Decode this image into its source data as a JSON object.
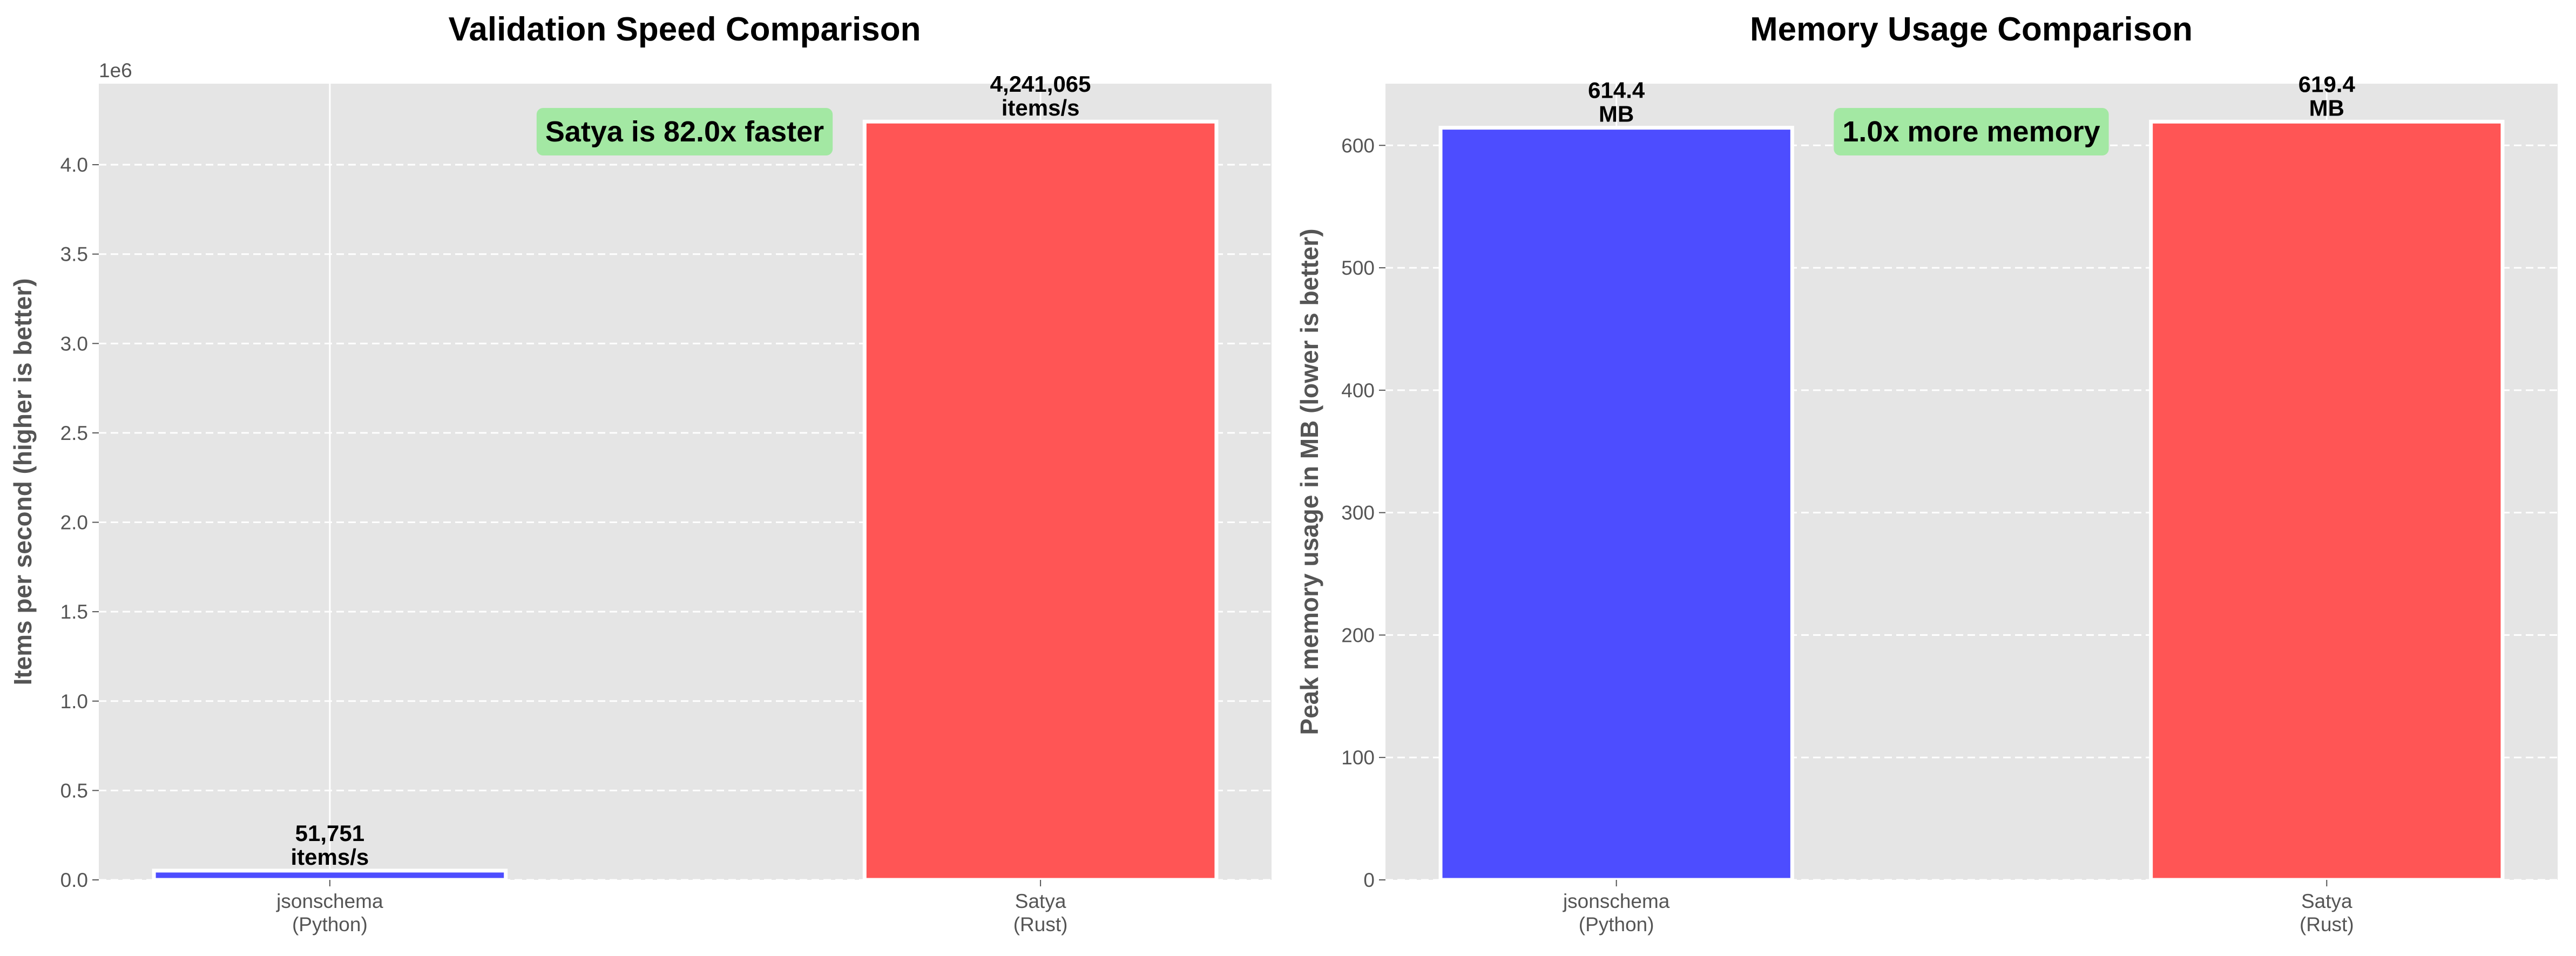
{
  "chart_data": [
    {
      "type": "bar",
      "title": "Validation Speed Comparison",
      "ylabel": "Items per second (higher is better)",
      "y_offset_label": "1e6",
      "categories": [
        "jsonschema\n(Python)",
        "Satya\n(Rust)"
      ],
      "values": [
        51751,
        4241065
      ],
      "value_labels": [
        "51,751\nitems/s",
        "4,241,065\nitems/s"
      ],
      "colors": [
        "#4d4dff",
        "#ff5555"
      ],
      "ylim": [
        0,
        4453118
      ],
      "yticks": [
        0,
        500000,
        1000000,
        1500000,
        2000000,
        2500000,
        3000000,
        3500000,
        4000000
      ],
      "ytick_labels": [
        "0.0",
        "0.5",
        "1.0",
        "1.5",
        "2.0",
        "2.5",
        "3.0",
        "3.5",
        "4.0"
      ],
      "annotation": "Satya is 82.0x faster",
      "annotation_bg": "#a3e8a3",
      "grid": true
    },
    {
      "type": "bar",
      "title": "Memory Usage Comparison",
      "ylabel": "Peak memory usage in MB (lower is better)",
      "categories": [
        "jsonschema\n(Python)",
        "Satya\n(Rust)"
      ],
      "values": [
        614.4,
        619.4
      ],
      "value_labels": [
        "614.4\nMB",
        "619.4\nMB"
      ],
      "colors": [
        "#4d4dff",
        "#ff5555"
      ],
      "ylim": [
        0,
        650.4
      ],
      "yticks": [
        0,
        100,
        200,
        300,
        400,
        500,
        600
      ],
      "ytick_labels": [
        "0",
        "100",
        "200",
        "300",
        "400",
        "500",
        "600"
      ],
      "annotation": "1.0x more memory",
      "annotation_bg": "#a3e8a3",
      "grid": true
    }
  ]
}
